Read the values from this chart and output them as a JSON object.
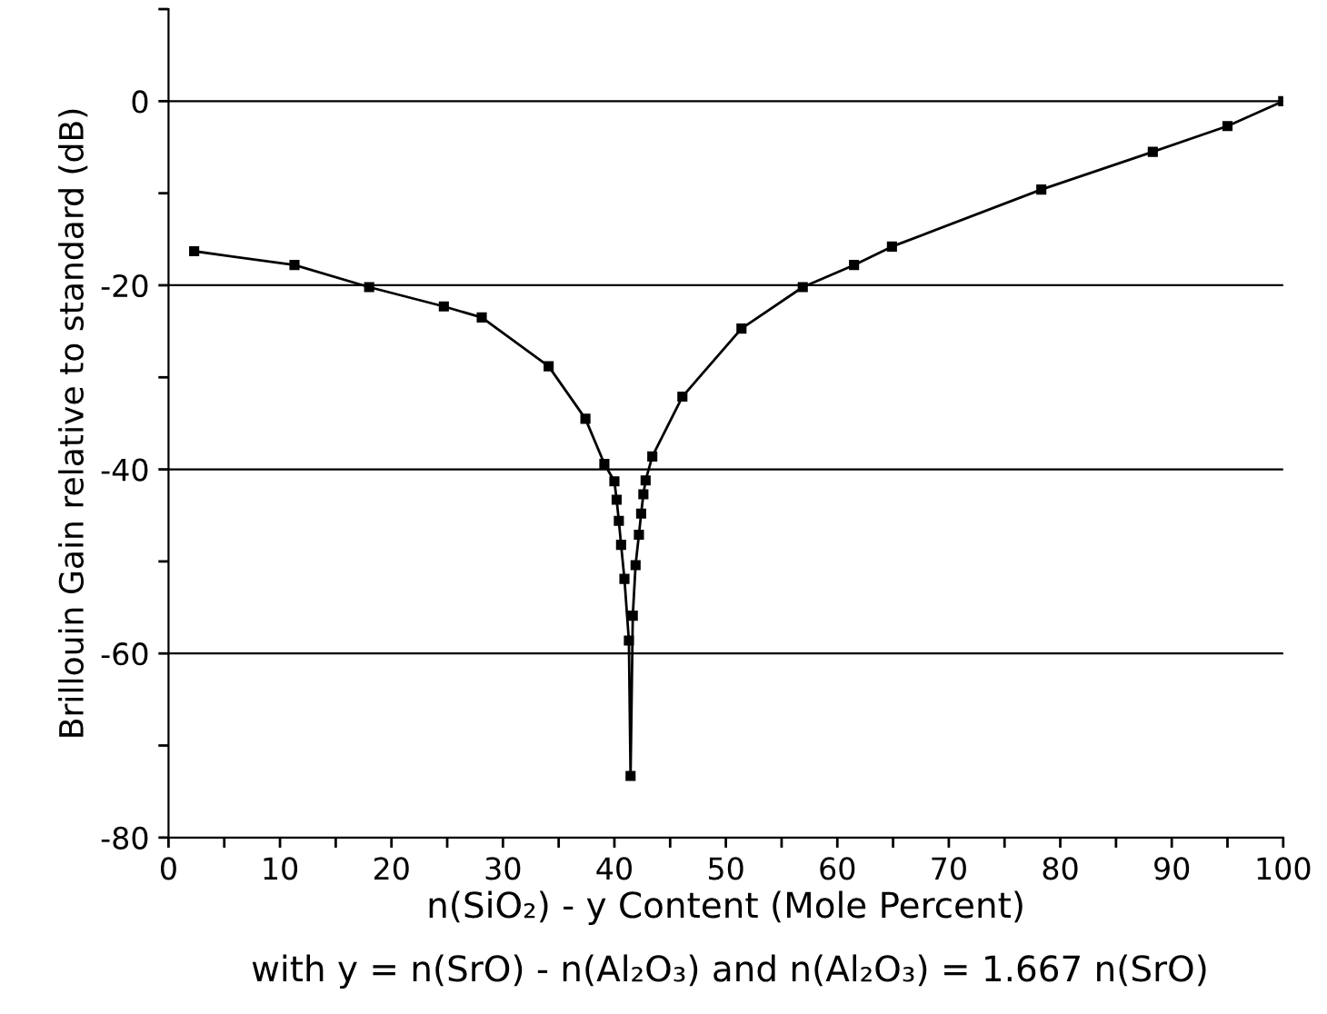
{
  "chart_data": {
    "type": "line",
    "xlabel": "n(SiO₂) - y Content (Mole Percent)",
    "ylabel": "Brillouin Gain relative to standard (dB)",
    "annotations": [
      "with y = n(SrO) - n(Al₂O₃) and n(Al₂O₃) = 1.667 n(SrO)"
    ],
    "series": [
      {
        "color": "#000000",
        "x": [
          2.3,
          11.3,
          18.0,
          24.7,
          28.1,
          34.1,
          37.4,
          39.1,
          40.0,
          40.2,
          40.4,
          40.6,
          40.9,
          41.3,
          41.45,
          41.65,
          41.9,
          42.2,
          42.4,
          42.6,
          42.8,
          43.4,
          46.1,
          51.4,
          56.9,
          61.5,
          64.9,
          78.3,
          88.3,
          95.0,
          100
        ],
        "values": [
          -16.3,
          -17.8,
          -20.2,
          -22.3,
          -23.5,
          -28.8,
          -34.5,
          -39.4,
          -41.3,
          -43.3,
          -45.6,
          -48.2,
          -51.9,
          -58.6,
          -73.3,
          -55.9,
          -50.4,
          -47.1,
          -44.8,
          -42.7,
          -41.2,
          -38.6,
          -32.1,
          -24.7,
          -20.2,
          -17.8,
          -15.8,
          -9.6,
          -5.5,
          -2.7,
          0
        ]
      }
    ],
    "marker": "square",
    "line_style": "solid",
    "grid": "y",
    "xlim": [
      0,
      100
    ],
    "ylim": [
      -80,
      10
    ],
    "xticks": [
      0,
      {
        "value": 5,
        "label": null
      },
      10,
      {
        "value": 15,
        "label": null
      },
      20,
      {
        "value": 25,
        "label": null
      },
      30,
      {
        "value": 35,
        "label": null
      },
      40,
      {
        "value": 45,
        "label": null
      },
      50,
      {
        "value": 55,
        "label": null
      },
      60,
      {
        "value": 65,
        "label": null
      },
      70,
      {
        "value": 75,
        "label": null
      },
      80,
      {
        "value": 85,
        "label": null
      },
      90,
      {
        "value": 95,
        "label": null
      },
      100
    ],
    "yticks": [
      -80,
      {
        "value": -70,
        "label": null
      },
      -60,
      {
        "value": -50,
        "label": null
      },
      -40,
      {
        "value": -30,
        "label": null
      },
      -20,
      {
        "value": -10,
        "label": null
      },
      0,
      {
        "value": 10,
        "label": null
      }
    ]
  }
}
